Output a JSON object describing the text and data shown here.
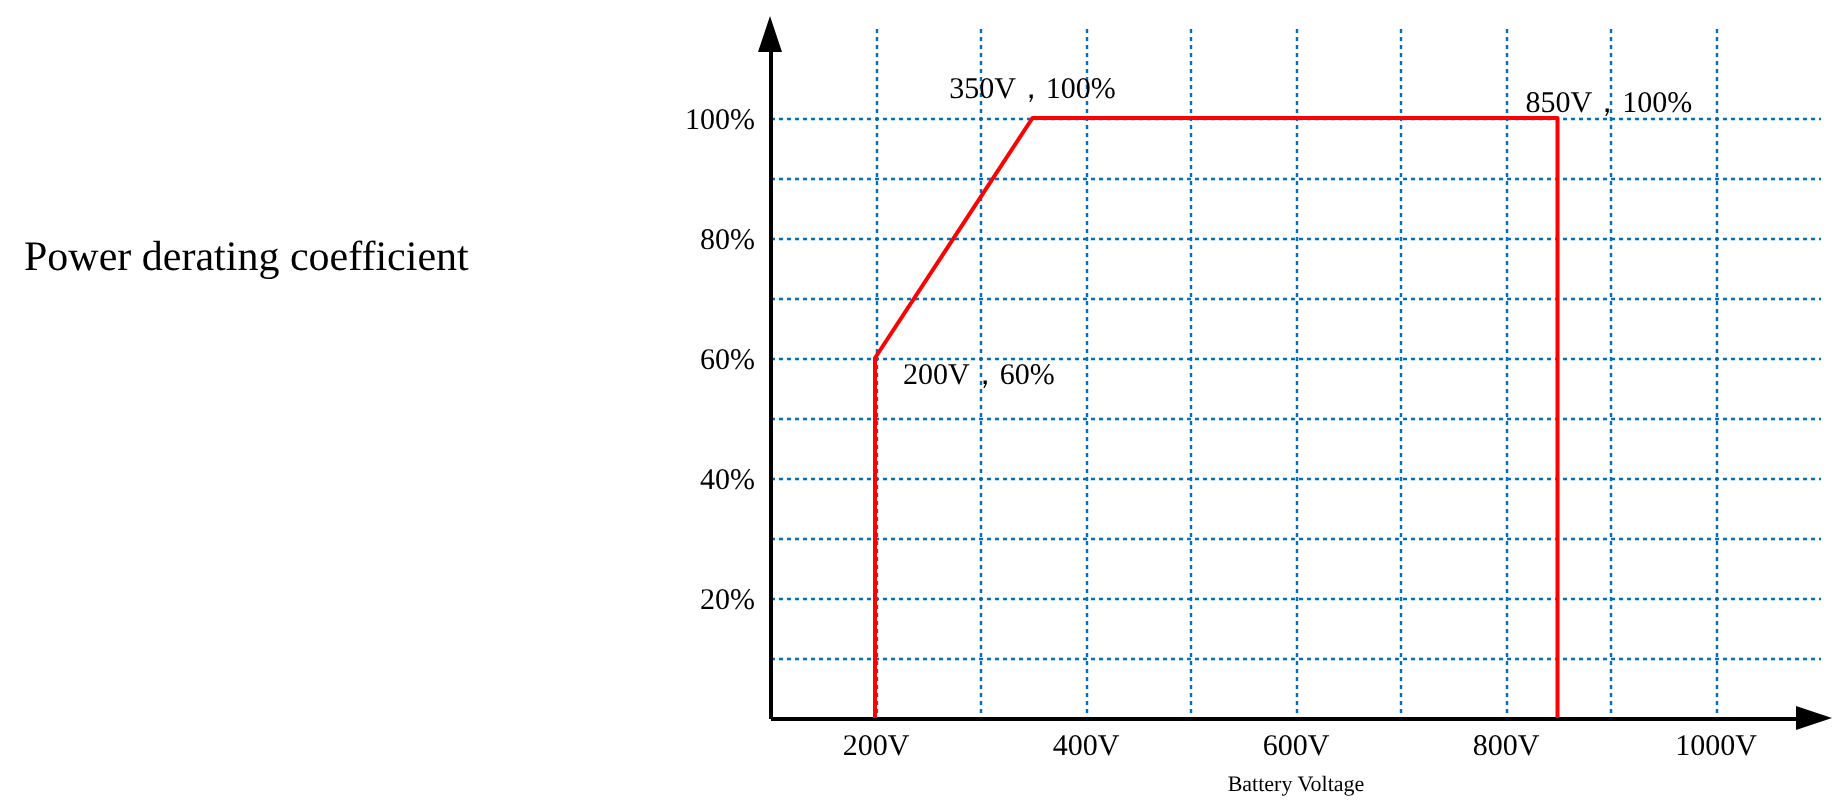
{
  "chart_data": {
    "type": "line",
    "xlabel": "Battery Voltage",
    "x": [
      200,
      200,
      350,
      850,
      850
    ],
    "series": [
      {
        "color": "#ff0000",
        "values": [
          0,
          60,
          100,
          100,
          0
        ]
      }
    ],
    "xlim": [
      100,
      1100
    ],
    "ylim": [
      0,
      115
    ],
    "xticks": [
      {
        "value": 200,
        "label": "200V"
      },
      {
        "value": 300,
        "label": null
      },
      {
        "value": 400,
        "label": "400V"
      },
      {
        "value": 500,
        "label": null
      },
      {
        "value": 600,
        "label": "600V"
      },
      {
        "value": 700,
        "label": null
      },
      {
        "value": 800,
        "label": "800V"
      },
      {
        "value": 900,
        "label": null
      },
      {
        "value": 1000,
        "label": "1000V"
      }
    ],
    "yticks": [
      {
        "value": 10,
        "label": null
      },
      {
        "value": 20,
        "label": "20%"
      },
      {
        "value": 30,
        "label": null
      },
      {
        "value": 40,
        "label": "40%"
      },
      {
        "value": 50,
        "label": null
      },
      {
        "value": 60,
        "label": "60%"
      },
      {
        "value": 70,
        "label": null
      },
      {
        "value": 80,
        "label": "80%"
      },
      {
        "value": 90,
        "label": null
      },
      {
        "value": 100,
        "label": "100%"
      }
    ],
    "annotations": [
      "Power derating coefficient",
      {
        "text": "350V，100%",
        "x": 350,
        "y": 100
      },
      {
        "text": "850V，100%",
        "x": 850,
        "y": 100
      },
      {
        "text": "200V，60%",
        "x": 200,
        "y": 60
      }
    ],
    "grid": true,
    "marker": "none",
    "line_style": "solid"
  }
}
